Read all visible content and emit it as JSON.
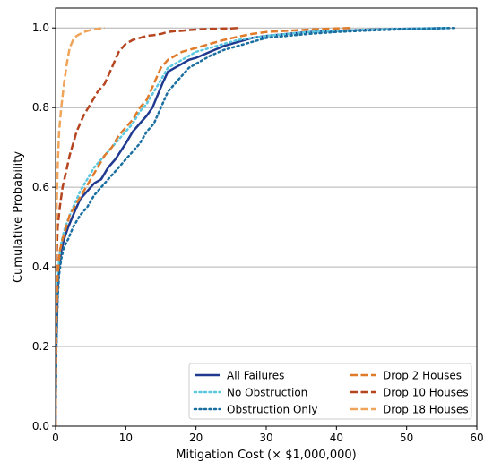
{
  "chart_data": {
    "type": "line",
    "title": "",
    "xlabel": "Mitigation Cost (× $1,000,000)",
    "ylabel": "Cumulative Probability",
    "xlim": [
      0,
      60
    ],
    "ylim": [
      0,
      1.05
    ],
    "xticks": [
      0,
      10,
      20,
      30,
      40,
      50,
      60
    ],
    "yticks": [
      0.0,
      0.2,
      0.4,
      0.6,
      0.8,
      1.0
    ],
    "xtick_labels": [
      "0",
      "10",
      "20",
      "30",
      "40",
      "50",
      "60"
    ],
    "ytick_labels": [
      "0.0",
      "0.2",
      "0.4",
      "0.6",
      "0.8",
      "1.0"
    ],
    "grid": "horizontal",
    "legend_position": "lower-right",
    "series": [
      {
        "name": "All Failures",
        "color": "#1f3a8f",
        "style": "solid",
        "x": [
          0,
          0.1,
          0.3,
          0.5,
          0.8,
          1.2,
          1.8,
          2.5,
          3.5,
          4.5,
          5.5,
          6.5,
          7.5,
          8.5,
          10,
          11,
          12,
          13,
          13.8,
          14.5,
          15.2,
          16,
          17,
          18,
          19,
          20,
          22,
          24,
          26,
          28,
          30,
          33,
          36,
          40,
          45,
          50,
          56
        ],
        "y": [
          0,
          0.2,
          0.34,
          0.4,
          0.44,
          0.47,
          0.5,
          0.53,
          0.57,
          0.59,
          0.61,
          0.62,
          0.65,
          0.67,
          0.71,
          0.74,
          0.76,
          0.78,
          0.8,
          0.83,
          0.86,
          0.89,
          0.9,
          0.91,
          0.92,
          0.925,
          0.94,
          0.955,
          0.965,
          0.975,
          0.98,
          0.985,
          0.99,
          0.993,
          0.996,
          0.998,
          1.0
        ]
      },
      {
        "name": "No Obstruction",
        "color": "#5bc8e0",
        "style": "dotted",
        "x": [
          0,
          0.1,
          0.3,
          0.5,
          0.8,
          1.2,
          1.8,
          2.5,
          3.5,
          4.5,
          5.5,
          6.5,
          7.5,
          8.5,
          10,
          11,
          12,
          13,
          14,
          15,
          16,
          17,
          18,
          19,
          20,
          22,
          24,
          26,
          28,
          30,
          33,
          36,
          40,
          45,
          50,
          56
        ],
        "y": [
          0,
          0.22,
          0.36,
          0.42,
          0.46,
          0.49,
          0.52,
          0.55,
          0.59,
          0.62,
          0.65,
          0.67,
          0.69,
          0.71,
          0.74,
          0.76,
          0.79,
          0.81,
          0.84,
          0.87,
          0.9,
          0.91,
          0.92,
          0.93,
          0.94,
          0.95,
          0.96,
          0.97,
          0.975,
          0.98,
          0.985,
          0.99,
          0.993,
          0.996,
          0.998,
          1.0
        ]
      },
      {
        "name": "Obstruction Only",
        "color": "#1a6fa0",
        "style": "dotted",
        "x": [
          0,
          0.1,
          0.3,
          0.5,
          0.8,
          1.2,
          1.8,
          2.5,
          3.5,
          4.5,
          5.5,
          6.5,
          7.5,
          8.5,
          10,
          11,
          12,
          13,
          14,
          15,
          16,
          17,
          18,
          19,
          20,
          22,
          24,
          26,
          28,
          30,
          33,
          36,
          40,
          45,
          50,
          57
        ],
        "y": [
          0,
          0.18,
          0.32,
          0.38,
          0.42,
          0.45,
          0.47,
          0.5,
          0.53,
          0.55,
          0.58,
          0.6,
          0.62,
          0.64,
          0.67,
          0.69,
          0.71,
          0.74,
          0.76,
          0.8,
          0.84,
          0.86,
          0.88,
          0.9,
          0.91,
          0.93,
          0.945,
          0.955,
          0.965,
          0.975,
          0.98,
          0.985,
          0.99,
          0.994,
          0.997,
          1.0
        ]
      },
      {
        "name": "Drop 2 Houses",
        "color": "#e07b2a",
        "style": "dashed",
        "x": [
          0,
          0.1,
          0.3,
          0.6,
          1,
          1.5,
          2,
          3,
          4,
          5,
          6,
          7,
          8,
          9,
          10,
          11,
          12,
          13,
          14,
          15,
          16,
          17,
          18,
          19,
          20,
          22,
          24,
          26,
          28,
          30,
          33,
          36,
          40,
          42
        ],
        "y": [
          0,
          0.25,
          0.38,
          0.44,
          0.47,
          0.5,
          0.53,
          0.56,
          0.59,
          0.62,
          0.65,
          0.68,
          0.7,
          0.73,
          0.75,
          0.77,
          0.8,
          0.82,
          0.86,
          0.9,
          0.92,
          0.93,
          0.94,
          0.945,
          0.95,
          0.96,
          0.97,
          0.978,
          0.985,
          0.99,
          0.993,
          0.996,
          0.999,
          1.0
        ]
      },
      {
        "name": "Drop 10 Houses",
        "color": "#b5441f",
        "style": "dashed",
        "x": [
          0,
          0.1,
          0.3,
          0.6,
          1,
          1.5,
          2,
          3,
          4,
          5,
          6,
          7,
          8,
          9,
          10,
          11,
          12,
          13,
          14,
          15,
          16,
          17,
          18,
          19,
          20,
          21,
          22,
          23,
          24,
          25,
          26
        ],
        "y": [
          0,
          0.4,
          0.5,
          0.55,
          0.6,
          0.64,
          0.68,
          0.74,
          0.78,
          0.81,
          0.84,
          0.86,
          0.9,
          0.94,
          0.96,
          0.97,
          0.975,
          0.98,
          0.982,
          0.985,
          0.99,
          0.992,
          0.993,
          0.995,
          0.996,
          0.997,
          0.998,
          0.998,
          0.999,
          0.999,
          1.0
        ]
      },
      {
        "name": "Drop 18 Houses",
        "color": "#f0a45a",
        "style": "dashed",
        "x": [
          0,
          0.05,
          0.15,
          0.3,
          0.5,
          0.8,
          1.2,
          1.6,
          2,
          2.5,
          3,
          4,
          5,
          6,
          7
        ],
        "y": [
          0,
          0.4,
          0.55,
          0.65,
          0.74,
          0.8,
          0.86,
          0.91,
          0.95,
          0.97,
          0.98,
          0.99,
          0.995,
          0.998,
          1.0
        ]
      }
    ]
  }
}
